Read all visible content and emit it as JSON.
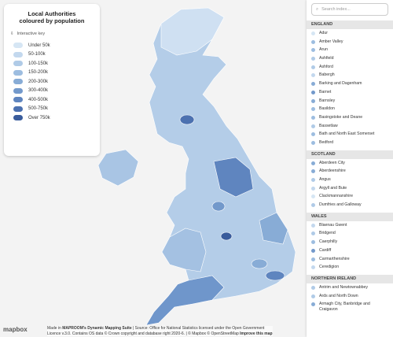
{
  "legend": {
    "title": "Local Authorities coloured by population",
    "key_label": "Interactive key",
    "items": [
      {
        "label": "Under 50k",
        "color": "#d6e6f4"
      },
      {
        "label": "50-100k",
        "color": "#c3d8ee"
      },
      {
        "label": "100-150k",
        "color": "#b0cbe7"
      },
      {
        "label": "150-200k",
        "color": "#9dbde0"
      },
      {
        "label": "200-300k",
        "color": "#88acd6"
      },
      {
        "label": "300-400k",
        "color": "#7399cb"
      },
      {
        "label": "400-500k",
        "color": "#5f85bf"
      },
      {
        "label": "500-750k",
        "color": "#4c71b0"
      },
      {
        "label": "Over 750k",
        "color": "#3a5c9c"
      }
    ]
  },
  "index": {
    "search_placeholder": "Search index...",
    "sections": [
      {
        "name": "ENGLAND",
        "items": [
          {
            "label": "Adur",
            "color": "#d6e6f4"
          },
          {
            "label": "Amber Valley",
            "color": "#9dbde0"
          },
          {
            "label": "Arun",
            "color": "#9dbde0"
          },
          {
            "label": "Ashfield",
            "color": "#b0cbe7"
          },
          {
            "label": "Ashford",
            "color": "#b0cbe7"
          },
          {
            "label": "Babergh",
            "color": "#c3d8ee"
          },
          {
            "label": "Barking and Dagenham",
            "color": "#88acd6"
          },
          {
            "label": "Barnet",
            "color": "#7399cb"
          },
          {
            "label": "Barnsley",
            "color": "#88acd6"
          },
          {
            "label": "Basildon",
            "color": "#9dbde0"
          },
          {
            "label": "Basingstoke and Deane",
            "color": "#9dbde0"
          },
          {
            "label": "Bassetlaw",
            "color": "#b0cbe7"
          },
          {
            "label": "Bath and North East Somerset",
            "color": "#9dbde0"
          },
          {
            "label": "Bedford",
            "color": "#9dbde0"
          }
        ]
      },
      {
        "name": "SCOTLAND",
        "items": [
          {
            "label": "Aberdeen City",
            "color": "#88acd6"
          },
          {
            "label": "Aberdeenshire",
            "color": "#88acd6"
          },
          {
            "label": "Angus",
            "color": "#b0cbe7"
          },
          {
            "label": "Argyll and Bute",
            "color": "#c3d8ee"
          },
          {
            "label": "Clackmannanshire",
            "color": "#d6e6f4"
          },
          {
            "label": "Dumfries and Galloway",
            "color": "#b0cbe7"
          }
        ]
      },
      {
        "name": "WALES",
        "items": [
          {
            "label": "Blaenau Gwent",
            "color": "#c3d8ee"
          },
          {
            "label": "Bridgend",
            "color": "#b0cbe7"
          },
          {
            "label": "Caerphilly",
            "color": "#9dbde0"
          },
          {
            "label": "Cardiff",
            "color": "#7399cb"
          },
          {
            "label": "Carmarthenshire",
            "color": "#9dbde0"
          },
          {
            "label": "Ceredigion",
            "color": "#c3d8ee"
          }
        ]
      },
      {
        "name": "NORTHERN IRELAND",
        "items": [
          {
            "label": "Antrim and Newtownabbey",
            "color": "#b0cbe7"
          },
          {
            "label": "Ards and North Down",
            "color": "#b0cbe7"
          },
          {
            "label": "Armagh City, Banbridge and Craigavon",
            "color": "#88acd6"
          }
        ]
      }
    ]
  },
  "attribution": {
    "logo": "mapbox",
    "line1": [
      "Made in ",
      "MAPROOM's Dynamic Mapping Suite",
      " | Source: Office for National Statistics licensed under the Open Government"
    ],
    "line2": [
      "Licence v.3.0. Contains OS data © Crown copyright and database right 2020-6. | © Mapbox © OpenStreetMap ",
      "Improve this map"
    ]
  }
}
